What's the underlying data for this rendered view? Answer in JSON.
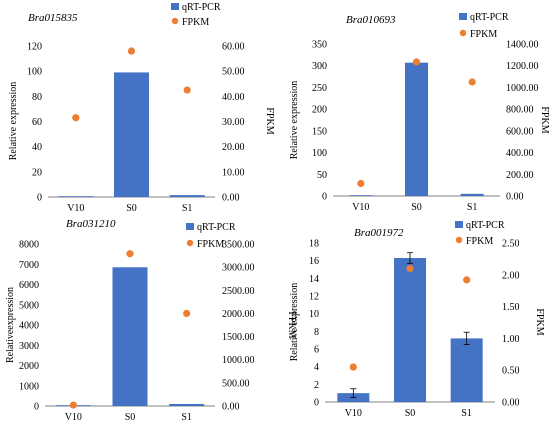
{
  "colors": {
    "bar": "#4472C4",
    "point": "#ED7D31",
    "axis": "#808080"
  },
  "legend": {
    "bar_label": "qRT-PCR",
    "point_label": "FPKM"
  },
  "chart_data": [
    {
      "type": "bar",
      "title": "Bra015835",
      "categories": [
        "V10",
        "S0",
        "S1"
      ],
      "ylabel": "Relative expression",
      "y2label": "FPKM",
      "ylim": [
        0,
        120
      ],
      "yticks": [
        "0",
        "20",
        "40",
        "60",
        "80",
        "100",
        "120"
      ],
      "y2lim": [
        0,
        60
      ],
      "y2ticks": [
        "0.00",
        "10.00",
        "20.00",
        "30.00",
        "40.00",
        "50.00",
        "60.00"
      ],
      "series": [
        {
          "name": "qRT-PCR",
          "kind": "bar",
          "axis": "left",
          "values": [
            0.3,
            99,
            1.5
          ],
          "errors": [
            0,
            0.5,
            0.3
          ]
        },
        {
          "name": "FPKM",
          "kind": "scatter",
          "axis": "right",
          "values": [
            31.5,
            58,
            42.5
          ]
        }
      ]
    },
    {
      "type": "bar",
      "title": "Bra010693",
      "categories": [
        "V10",
        "S0",
        "S1"
      ],
      "ylabel": "Relative expression",
      "y2label": "FPKM",
      "ylim": [
        0,
        350
      ],
      "yticks": [
        "0",
        "50",
        "100",
        "150",
        "200",
        "250",
        "300",
        "350"
      ],
      "y2lim": [
        0,
        1400
      ],
      "y2ticks": [
        "0.00",
        "200.00",
        "400.00",
        "600.00",
        "800.00",
        "1000.00",
        "1200.00",
        "1400.00"
      ],
      "series": [
        {
          "name": "qRT-PCR",
          "kind": "bar",
          "axis": "left",
          "values": [
            1,
            307,
            5
          ],
          "errors": [
            0.5,
            2,
            1.5
          ]
        },
        {
          "name": "FPKM",
          "kind": "scatter",
          "axis": "right",
          "values": [
            115,
            1235,
            1050
          ]
        }
      ]
    },
    {
      "type": "bar",
      "title": "Bra031210",
      "categories": [
        "V10",
        "S0",
        "S1"
      ],
      "ylabel": "Relativeexpression",
      "y2label": "FPKM",
      "ylim": [
        0,
        8000
      ],
      "yticks": [
        "0",
        "1000",
        "2000",
        "3000",
        "4000",
        "5000",
        "6000",
        "7000",
        "8000"
      ],
      "y2lim": [
        0,
        3500
      ],
      "y2ticks": [
        "0.00",
        "500.00",
        "1000.00",
        "1500.00",
        "2000.00",
        "2500.00",
        "3000.00",
        "3500.00"
      ],
      "series": [
        {
          "name": "qRT-PCR",
          "kind": "bar",
          "axis": "left",
          "values": [
            30,
            6850,
            100
          ],
          "errors": [
            10,
            30,
            20
          ]
        },
        {
          "name": "FPKM",
          "kind": "scatter",
          "axis": "right",
          "values": [
            20,
            3290,
            2000
          ]
        }
      ]
    },
    {
      "type": "bar",
      "title": "Bra001972",
      "categories": [
        "V10",
        "S0",
        "S1"
      ],
      "ylabel": "Relative expression",
      "y2label": "FPKM",
      "ylim": [
        0,
        18
      ],
      "yticks": [
        "0",
        "2",
        "4",
        "6",
        "8",
        "10",
        "12",
        "14",
        "16",
        "18"
      ],
      "y2lim": [
        0,
        2.5
      ],
      "y2ticks": [
        "0.00",
        "0.50",
        "1.00",
        "1.50",
        "2.00",
        "2.50"
      ],
      "series": [
        {
          "name": "qRT-PCR",
          "kind": "bar",
          "axis": "left",
          "values": [
            1,
            16.3,
            7.2
          ],
          "errors": [
            0.5,
            0.6,
            0.7
          ]
        },
        {
          "name": "FPKM",
          "kind": "scatter",
          "axis": "right",
          "values": [
            0.55,
            2.1,
            1.92
          ]
        }
      ]
    }
  ]
}
